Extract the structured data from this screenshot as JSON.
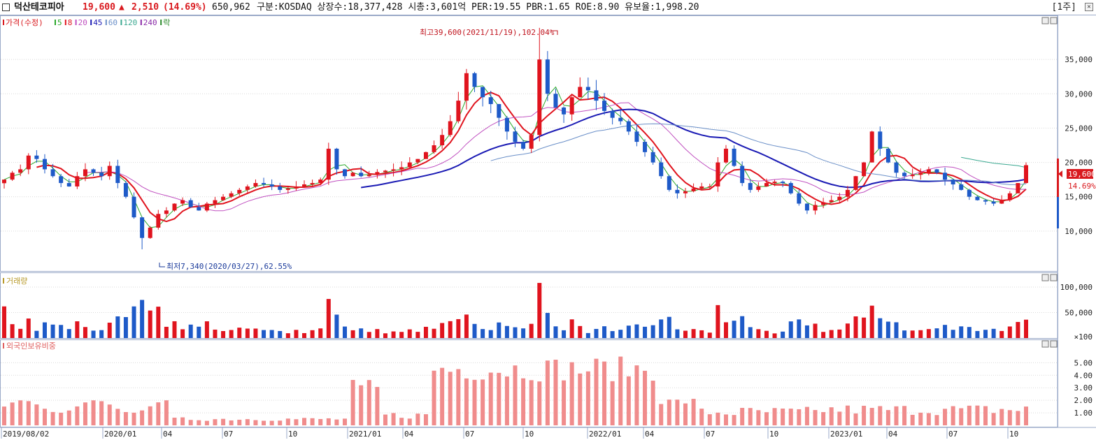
{
  "header": {
    "stock_name": "덕산테코피아",
    "price": "19,600",
    "change_arrow": "▲",
    "change": "2,510",
    "change_pct": "(14.69%)",
    "volume": "650,962",
    "info": "구분:KOSDAQ 상장수:18,377,428 시총:3,601억 PER:19.55 PBR:1.65 ROE:8.90 유보율:1,998.20",
    "period": "[1주]",
    "close_label": "✕"
  },
  "price_panel": {
    "legend": [
      {
        "label": "가격(수정)",
        "color": "#d9191e"
      },
      {
        "label": "5",
        "color": "#2aa82a"
      },
      {
        "label": "8",
        "color": "#e0141e"
      },
      {
        "label": "20",
        "color": "#c050c0"
      },
      {
        "label": "45",
        "color": "#1a1ab4"
      },
      {
        "label": "60",
        "color": "#6a8fc8"
      },
      {
        "label": "120",
        "color": "#3aa890"
      },
      {
        "label": "240",
        "color": "#8a2aa8"
      },
      {
        "label": "락",
        "color": "#2a8a2a"
      }
    ],
    "max_annotation": "최고39,600(2021/11/19),102.04%",
    "min_annotation": "최저7,340(2020/03/27),62.55%",
    "current_price_tag": "19,600",
    "current_pct_tag": "14.69%"
  },
  "volume_panel": {
    "title": "거래량"
  },
  "foreign_panel": {
    "title": "외국인보유비중"
  },
  "x_axis_labels": [
    "2019/08/02",
    "2020/01",
    "04",
    "07",
    "10",
    "2021/01",
    "04",
    "07",
    "10",
    "2022/01",
    "04",
    "07",
    "10",
    "2023/01",
    "04",
    "07",
    "10"
  ],
  "colors": {
    "up": "#e0141e",
    "down": "#1e5ac8",
    "foreign_bar": "#f08c8c",
    "grid": "#d9d9d9"
  },
  "chart_data": [
    {
      "type": "candlestick",
      "title": "가격(수정)",
      "y_ticks": [
        "35,000",
        "30,000",
        "25,000",
        "20,000",
        "15,000",
        "10,000"
      ],
      "y_tick_values": [
        35000,
        30000,
        25000,
        20000,
        15000,
        10000
      ],
      "ylim": [
        5000,
        40000
      ],
      "max": {
        "value": 39600,
        "date": "2021/11/19"
      },
      "min": {
        "value": 7340,
        "date": "2020/03/27"
      },
      "last_close": 19600,
      "weekly_close_path": [
        17500,
        18500,
        19000,
        21000,
        20500,
        19000,
        18000,
        17000,
        16500,
        18000,
        19000,
        18500,
        18000,
        19500,
        17000,
        15000,
        12000,
        9000,
        10500,
        12500,
        13000,
        14000,
        14500,
        13500,
        13000,
        14000,
        14500,
        15000,
        15500,
        16000,
        16500,
        17000,
        16800,
        16500,
        16000,
        16200,
        16500,
        16800,
        17000,
        17500,
        22000,
        19000,
        18000,
        18500,
        18000,
        18200,
        18600,
        18800,
        19000,
        19300,
        20000,
        20500,
        21500,
        22500,
        24000,
        26000,
        29000,
        33000,
        31000,
        29500,
        28500,
        26500,
        24500,
        23000,
        22000,
        24000,
        35000,
        30000,
        28000,
        27000,
        29500,
        31000,
        30500,
        29000,
        27500,
        26500,
        26000,
        24500,
        23000,
        21500,
        20000,
        18000,
        16000,
        15500,
        15800,
        16200,
        16500,
        16500,
        20000,
        22000,
        19500,
        17000,
        16000,
        16500,
        17000,
        17200,
        17000,
        15500,
        14000,
        13000,
        13800,
        14200,
        14500,
        15000,
        16000,
        18000,
        20000,
        24500,
        22000,
        20000,
        18500,
        18000,
        18200,
        18500,
        19000,
        18500,
        17500,
        16800,
        16000,
        15000,
        14500,
        14300,
        14000,
        14500,
        15500,
        17000,
        19600
      ]
    },
    {
      "type": "bar",
      "title": "거래량",
      "y_ticks": [
        "100,000",
        "50,000",
        "×100"
      ],
      "y_tick_values": [
        100000,
        50000,
        0
      ],
      "ylim": [
        0,
        115000
      ]
    },
    {
      "type": "bar",
      "title": "외국인보유비중",
      "y_ticks": [
        "5.00",
        "4.00",
        "3.00",
        "2.00",
        "1.00"
      ],
      "y_tick_values": [
        5,
        4,
        3,
        2,
        1
      ],
      "ylim": [
        0,
        6.3
      ]
    }
  ]
}
